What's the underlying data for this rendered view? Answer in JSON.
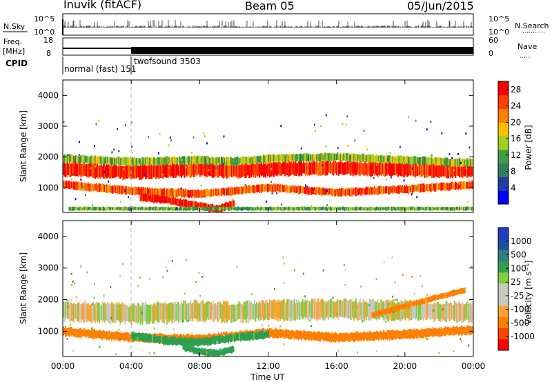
{
  "header": {
    "station": "Inuvik (fitACF)",
    "beam": "Beam 05",
    "date": "05/Jun/2015"
  },
  "status_panels": {
    "nsky_label": "N.Sky",
    "nsearch_label": "N.Search",
    "nsky_ticks": [
      "10^5",
      "10^0"
    ],
    "freq_label_1": "Freq.",
    "freq_label_2": "[MHz]",
    "freq_ticks": [
      "18",
      "8"
    ],
    "nave_label": "Nave",
    "nave_ticks": [
      "60",
      "0"
    ],
    "cpid_label": "CPID",
    "cpid_1": "normal (fast) 151",
    "cpid_2": "twofsound 3503"
  },
  "colors": {
    "power_scale": [
      "#0000ff",
      "#1f3f9f",
      "#2f7f5f",
      "#3f9f3f",
      "#9fcf1f",
      "#ffbf00",
      "#ff7f00",
      "#ff3f00",
      "#ff0000"
    ],
    "velocity_scale": [
      "#ff0000",
      "#ff4000",
      "#ff8000",
      "#ffa030",
      "#c8c8c0",
      "#c8c8c0",
      "#7fcf3f",
      "#2f9f4f",
      "#2f7f7f",
      "#1f4f9f",
      "#1f3fbf"
    ]
  },
  "chart_data": [
    {
      "type": "heatmap",
      "name": "power",
      "ylabel": "Slant Range [km]",
      "xlabel": "Time UT",
      "xlim": [
        0,
        24
      ],
      "ylim": [
        200,
        4500
      ],
      "x_ticks": [
        "00:00",
        "04:00",
        "08:00",
        "12:00",
        "16:00",
        "20:00",
        "00:00"
      ],
      "y_ticks": [
        1000,
        2000,
        3000,
        4000
      ],
      "colorbar_label": "Power [dB]",
      "colorbar_ticks": [
        4,
        8,
        12,
        16,
        20,
        24,
        28
      ],
      "colorbar_range": [
        0,
        30
      ],
      "bands": [
        {
          "x": [
            0,
            4,
            8,
            10,
            12,
            16,
            20,
            24
          ],
          "y_center": [
            1600,
            1500,
            1600,
            1550,
            1600,
            1650,
            1600,
            1550
          ],
          "thickness": 450,
          "value": 27
        },
        {
          "x": [
            0,
            4,
            8,
            10,
            12,
            16,
            20,
            24
          ],
          "y_center": [
            1950,
            1850,
            1900,
            1850,
            1950,
            2000,
            1900,
            1800
          ],
          "thickness": 250,
          "value": 14
        },
        {
          "x": [
            0,
            4,
            8,
            10,
            12,
            16,
            20,
            24
          ],
          "y_center": [
            1100,
            900,
            800,
            900,
            1000,
            850,
            950,
            1100
          ],
          "thickness": 250,
          "value": 24
        },
        {
          "x": [
            4.5,
            6,
            8,
            9,
            10
          ],
          "y_center": [
            700,
            600,
            400,
            300,
            500
          ],
          "thickness": 250,
          "value": 28
        },
        {
          "x": [
            0.3,
            3,
            6,
            10,
            14,
            18,
            22,
            23.9
          ],
          "y_center": [
            320,
            320,
            320,
            320,
            320,
            320,
            320,
            320
          ],
          "thickness": 120,
          "value": 12
        }
      ]
    },
    {
      "type": "heatmap",
      "name": "velocity",
      "ylabel": "Slant Range [km]",
      "xlabel": "Time UT",
      "xlim": [
        0,
        24
      ],
      "ylim": [
        200,
        4500
      ],
      "x_ticks": [
        "00:00",
        "04:00",
        "08:00",
        "12:00",
        "16:00",
        "20:00",
        "00:00"
      ],
      "y_ticks": [
        1000,
        2000,
        3000,
        4000
      ],
      "colorbar_label": "Velocity [m s⁻¹]",
      "colorbar_ticks": [
        1000,
        500,
        100,
        25,
        -25,
        -100,
        -500,
        -1000
      ],
      "bands": [
        {
          "x": [
            0,
            4,
            8,
            10,
            12,
            16,
            20,
            24
          ],
          "y_center": [
            1650,
            1550,
            1650,
            1600,
            1650,
            1700,
            1650,
            1600
          ],
          "thickness": 600,
          "value": 0
        },
        {
          "x": [
            0,
            4,
            8,
            10,
            12,
            16,
            20,
            24
          ],
          "y_center": [
            1000,
            800,
            750,
            850,
            950,
            800,
            900,
            1050
          ],
          "thickness": 280,
          "value": -200
        },
        {
          "x": [
            4,
            6,
            8,
            10,
            12
          ],
          "y_center": [
            850,
            700,
            650,
            800,
            900
          ],
          "thickness": 250,
          "value": 150
        },
        {
          "x": [
            7,
            8,
            9,
            10
          ],
          "y_center": [
            500,
            350,
            300,
            450
          ],
          "thickness": 220,
          "value": 300
        },
        {
          "x": [
            18,
            20,
            22,
            23.5
          ],
          "y_center": [
            1500,
            1800,
            2100,
            2300
          ],
          "thickness": 180,
          "value": -150
        }
      ]
    }
  ]
}
